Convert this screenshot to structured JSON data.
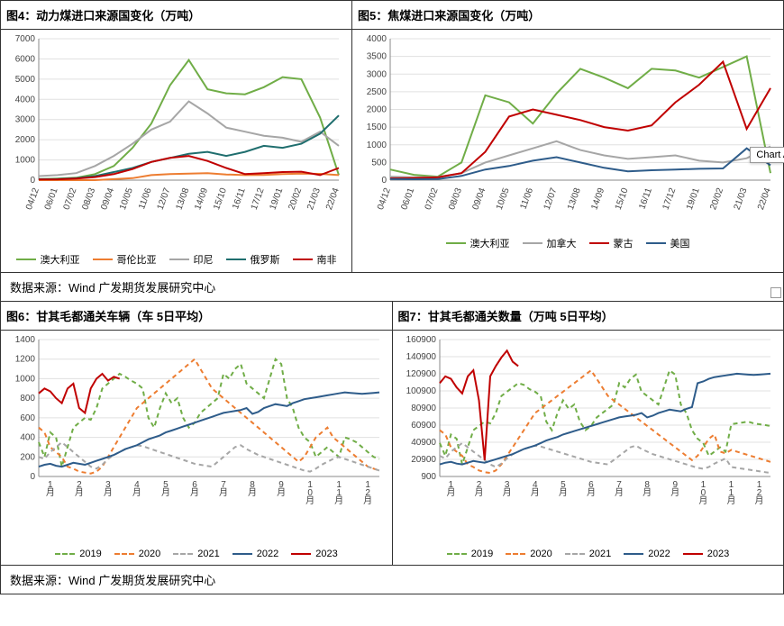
{
  "source_text": "数据来源：Wind 广发期货发展研究中心",
  "chart_area_tooltip": "Chart Area",
  "colors": {
    "green": "#70ad47",
    "orange": "#ed7d31",
    "grey": "#a6a6a6",
    "teal": "#1f6e6e",
    "red": "#c00000",
    "blue": "#2e5c8a",
    "dash_green": "#70ad47",
    "dash_orange": "#ed7d31",
    "dash_grey": "#a6a6a6",
    "grid": "#e0e0e0",
    "axis": "#888888"
  },
  "chart4": {
    "title": "图4：动力煤进口来源国变化（万吨）",
    "type": "line",
    "ylim": [
      0,
      7000
    ],
    "ytick_step": 1000,
    "categories": [
      "04/12",
      "06/01",
      "07/02",
      "08/03",
      "09/04",
      "10/05",
      "11/06",
      "12/07",
      "13/08",
      "14/09",
      "15/10",
      "16/11",
      "17/12",
      "19/01",
      "20/02",
      "21/03",
      "22/04"
    ],
    "series": [
      {
        "name": "澳大利亚",
        "color": "#70ad47",
        "values": [
          50,
          80,
          120,
          300,
          700,
          1600,
          2800,
          4700,
          5950,
          4500,
          4300,
          4250,
          4600,
          5100,
          5000,
          3100,
          250
        ]
      },
      {
        "name": "哥伦比亚",
        "color": "#ed7d31",
        "values": [
          0,
          0,
          0,
          0,
          50,
          100,
          250,
          300,
          320,
          350,
          280,
          250,
          260,
          300,
          320,
          310,
          250
        ]
      },
      {
        "name": "印尼",
        "color": "#a6a6a6",
        "values": [
          200,
          250,
          350,
          700,
          1200,
          1800,
          2500,
          2900,
          3900,
          3300,
          2600,
          2400,
          2200,
          2100,
          1900,
          2400,
          1700
        ]
      },
      {
        "name": "俄罗斯",
        "color": "#1f6e6e",
        "values": [
          50,
          60,
          100,
          200,
          400,
          600,
          900,
          1100,
          1300,
          1400,
          1200,
          1400,
          1700,
          1600,
          1800,
          2300,
          3200
        ]
      },
      {
        "name": "南非",
        "color": "#c00000",
        "values": [
          30,
          40,
          80,
          150,
          300,
          550,
          900,
          1100,
          1200,
          950,
          600,
          300,
          350,
          400,
          420,
          250,
          600
        ]
      }
    ]
  },
  "chart5": {
    "title": "图5：焦煤进口来源国变化（万吨）",
    "type": "line",
    "ylim": [
      0,
      4000
    ],
    "ytick_step": 500,
    "categories": [
      "04/12",
      "06/01",
      "07/02",
      "08/03",
      "09/04",
      "10/05",
      "11/06",
      "12/07",
      "13/08",
      "14/09",
      "15/10",
      "16/11",
      "17/12",
      "19/01",
      "20/02",
      "21/03",
      "22/04"
    ],
    "series": [
      {
        "name": "澳大利亚",
        "color": "#70ad47",
        "values": [
          300,
          150,
          100,
          500,
          2400,
          2200,
          1600,
          2450,
          3150,
          2900,
          2600,
          3150,
          3100,
          2900,
          3200,
          3500,
          200
        ]
      },
      {
        "name": "加拿大",
        "color": "#a6a6a6",
        "values": [
          100,
          80,
          90,
          200,
          500,
          700,
          900,
          1100,
          850,
          700,
          600,
          650,
          700,
          550,
          500,
          620,
          950
        ]
      },
      {
        "name": "蒙古",
        "color": "#c00000",
        "values": [
          50,
          60,
          80,
          200,
          800,
          1800,
          2000,
          1850,
          1700,
          1500,
          1400,
          1550,
          2200,
          2700,
          3350,
          1450,
          2600
        ]
      },
      {
        "name": "美国",
        "color": "#2e5c8a",
        "values": [
          30,
          25,
          30,
          120,
          300,
          400,
          550,
          650,
          500,
          350,
          250,
          280,
          300,
          320,
          330,
          900,
          420
        ]
      }
    ]
  },
  "chart6": {
    "title": "图6：甘其毛都通关车辆（车 5日平均）",
    "type": "line",
    "ylim": [
      0,
      1400
    ],
    "ytick_step": 200,
    "categories": [
      "1月",
      "2月",
      "3月",
      "4月",
      "5月",
      "6月",
      "7月",
      "8月",
      "9月",
      "10月",
      "11月",
      "12月"
    ],
    "points_per_cat": 5,
    "series": [
      {
        "name": "2019",
        "color": "#70ad47",
        "dashed": true,
        "values": [
          350,
          200,
          450,
          400,
          100,
          300,
          500,
          550,
          600,
          580,
          700,
          900,
          950,
          1000,
          1050,
          1020,
          980,
          950,
          900,
          600,
          500,
          700,
          850,
          750,
          800,
          600,
          500,
          550,
          650,
          700,
          750,
          800,
          1050,
          1000,
          1100,
          1150,
          950,
          900,
          850,
          800,
          1000,
          1200,
          1150,
          800,
          700,
          500,
          400,
          350,
          200,
          250,
          300,
          250,
          200,
          400,
          380,
          350,
          300,
          250,
          200,
          180
        ]
      },
      {
        "name": "2020",
        "color": "#ed7d31",
        "dashed": true,
        "values": [
          500,
          450,
          300,
          250,
          200,
          100,
          80,
          50,
          40,
          30,
          50,
          100,
          200,
          300,
          400,
          500,
          600,
          700,
          750,
          800,
          850,
          900,
          950,
          1000,
          1050,
          1100,
          1150,
          1200,
          1100,
          1000,
          900,
          850,
          800,
          750,
          700,
          650,
          600,
          550,
          500,
          450,
          400,
          350,
          300,
          250,
          200,
          150,
          200,
          300,
          400,
          450,
          500,
          400,
          350,
          300,
          250,
          200,
          150,
          100,
          80,
          60
        ]
      },
      {
        "name": "2021",
        "color": "#a6a6a6",
        "dashed": true,
        "values": [
          200,
          180,
          250,
          300,
          350,
          300,
          250,
          200,
          150,
          100,
          80,
          120,
          180,
          220,
          250,
          280,
          300,
          320,
          310,
          290,
          270,
          250,
          230,
          210,
          190,
          170,
          150,
          130,
          120,
          110,
          100,
          150,
          200,
          250,
          300,
          320,
          280,
          250,
          220,
          200,
          180,
          160,
          140,
          120,
          100,
          80,
          60,
          50,
          80,
          120,
          150,
          180,
          200,
          180,
          160,
          140,
          120,
          100,
          80,
          60
        ]
      },
      {
        "name": "2022",
        "color": "#2e5c8a",
        "dashed": false,
        "values": [
          100,
          120,
          130,
          110,
          100,
          120,
          140,
          130,
          120,
          140,
          160,
          180,
          200,
          220,
          250,
          280,
          300,
          320,
          350,
          380,
          400,
          420,
          450,
          470,
          490,
          510,
          530,
          550,
          570,
          590,
          610,
          630,
          650,
          660,
          670,
          680,
          700,
          640,
          660,
          700,
          720,
          740,
          730,
          720,
          750,
          770,
          790,
          800,
          810,
          820,
          830,
          840,
          850,
          860,
          855,
          850,
          845,
          850,
          855,
          860
        ]
      },
      {
        "name": "2023",
        "color": "#c00000",
        "dashed": false,
        "values": [
          850,
          900,
          870,
          800,
          750,
          900,
          950,
          700,
          650,
          900,
          1000,
          1050,
          980,
          1020,
          1000
        ]
      }
    ]
  },
  "chart7": {
    "title": "图7：甘其毛都通关数量（万吨 5日平均）",
    "type": "line",
    "ylim": [
      900,
      160900
    ],
    "yticks": [
      900,
      20900,
      40900,
      60900,
      80900,
      100900,
      120900,
      140900,
      160900
    ],
    "categories": [
      "1月",
      "2月",
      "3月",
      "4月",
      "5月",
      "6月",
      "7月",
      "8月",
      "9月",
      "10月",
      "11月",
      "12月"
    ],
    "points_per_cat": 5,
    "series": [
      {
        "name": "2019",
        "color": "#70ad47",
        "dashed": true,
        "values": [
          40000,
          25000,
          50000,
          45000,
          15000,
          35000,
          55000,
          60000,
          65000,
          63000,
          75000,
          95000,
          100000,
          105000,
          110000,
          108000,
          103000,
          100000,
          95000,
          65000,
          55000,
          75000,
          90000,
          80000,
          85000,
          65000,
          55000,
          60000,
          70000,
          75000,
          80000,
          85000,
          110000,
          105000,
          115000,
          120000,
          100000,
          95000,
          90000,
          85000,
          105000,
          125000,
          120000,
          85000,
          75000,
          55000,
          45000,
          40000,
          25000,
          30000,
          35000,
          30000,
          62000,
          63000,
          64000,
          65000,
          63000,
          62000,
          61000,
          60000
        ]
      },
      {
        "name": "2020",
        "color": "#ed7d31",
        "dashed": true,
        "values": [
          55000,
          50000,
          35000,
          30000,
          25000,
          15000,
          12000,
          8000,
          6000,
          5000,
          8000,
          15000,
          25000,
          35000,
          45000,
          55000,
          65000,
          75000,
          80000,
          85000,
          90000,
          95000,
          100000,
          105000,
          110000,
          115000,
          120000,
          125000,
          115000,
          105000,
          95000,
          90000,
          85000,
          80000,
          75000,
          70000,
          65000,
          60000,
          55000,
          50000,
          45000,
          40000,
          35000,
          30000,
          25000,
          20000,
          25000,
          35000,
          45000,
          50000,
          30000,
          28000,
          32000,
          30000,
          28000,
          26000,
          24000,
          22000,
          20000,
          18000
        ]
      },
      {
        "name": "2021",
        "color": "#a6a6a6",
        "dashed": true,
        "values": [
          25000,
          22000,
          30000,
          35000,
          40000,
          35000,
          30000,
          25000,
          20000,
          15000,
          12000,
          16000,
          22000,
          27000,
          30000,
          33000,
          35000,
          37000,
          36000,
          34000,
          32000,
          30000,
          28000,
          26000,
          24000,
          22000,
          20000,
          18000,
          17000,
          16000,
          15000,
          20000,
          25000,
          30000,
          35000,
          37000,
          33000,
          30000,
          27000,
          25000,
          23000,
          21000,
          19000,
          17000,
          15000,
          13000,
          11000,
          10000,
          12000,
          16000,
          19000,
          22000,
          12000,
          11000,
          10000,
          9000,
          8000,
          7000,
          6000,
          5000
        ]
      },
      {
        "name": "2022",
        "color": "#2e5c8a",
        "dashed": false,
        "values": [
          15000,
          17000,
          18000,
          16000,
          15000,
          17000,
          19000,
          18000,
          17000,
          19000,
          21000,
          23000,
          25000,
          27000,
          30000,
          33000,
          35000,
          37000,
          40000,
          43000,
          45000,
          47000,
          50000,
          52000,
          54000,
          56000,
          58000,
          60000,
          62000,
          64000,
          66000,
          68000,
          70000,
          71000,
          72000,
          73000,
          75000,
          70000,
          72000,
          75000,
          77000,
          79000,
          78000,
          77000,
          80000,
          82000,
          110000,
          112000,
          115000,
          117000,
          118000,
          119000,
          120000,
          121000,
          120500,
          120000,
          119500,
          120000,
          120500,
          121000
        ]
      },
      {
        "name": "2023",
        "color": "#c00000",
        "dashed": false,
        "values": [
          110000,
          118000,
          115000,
          105000,
          98000,
          118000,
          125000,
          90000,
          20000,
          118000,
          130000,
          140000,
          148000,
          135000,
          130000
        ]
      }
    ]
  }
}
